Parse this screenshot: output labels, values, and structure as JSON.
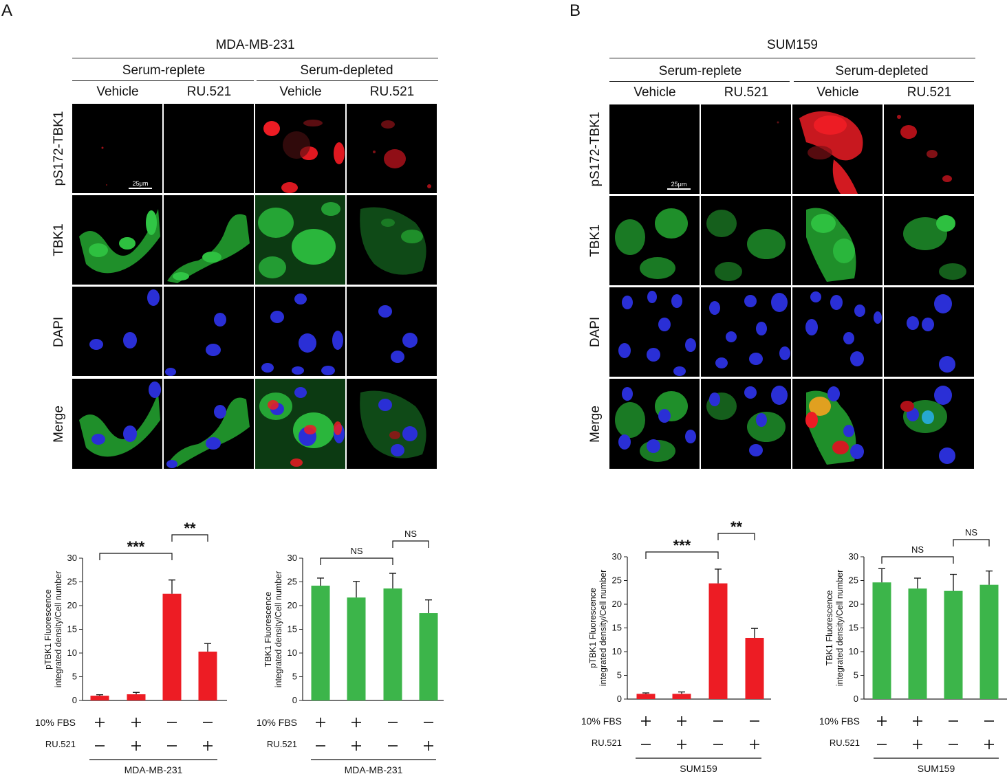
{
  "panels": [
    {
      "letter": "A",
      "cell_line": "MDA-MB-231",
      "conditions": [
        "Serum-replete",
        "Serum-depleted"
      ],
      "treatments": [
        "Vehicle",
        "RU.521",
        "Vehicle",
        "RU.521"
      ],
      "rows": [
        "pS172-TBK1",
        "TBK1",
        "DAPI",
        "Merge"
      ],
      "scale_bar": "25μm"
    },
    {
      "letter": "B",
      "cell_line": "SUM159",
      "conditions": [
        "Serum-replete",
        "Serum-depleted"
      ],
      "treatments": [
        "Vehicle",
        "RU.521",
        "Vehicle",
        "RU.521"
      ],
      "rows": [
        "pS172-TBK1",
        "TBK1",
        "DAPI",
        "Merge"
      ],
      "scale_bar": "25μm"
    }
  ],
  "colors": {
    "red": "#ed1c24",
    "green": "#3cb54a",
    "dapi": "#2a2fd6",
    "axis": "#222222"
  },
  "chart_data": [
    {
      "type": "bar",
      "color": "red",
      "ylabel": "pTBK1 Fluorescence integrated density/Cell number",
      "ylim": [
        0,
        30
      ],
      "yticks": [
        0,
        5,
        10,
        15,
        20,
        25,
        30
      ],
      "values": [
        1.0,
        1.3,
        22.5,
        10.3
      ],
      "errors": [
        0.2,
        0.4,
        2.9,
        1.7
      ],
      "row_labels": [
        "10% FBS",
        "RU.521"
      ],
      "fbs": [
        "+",
        "+",
        "—",
        "—"
      ],
      "ru": [
        "—",
        "+",
        "—",
        "+"
      ],
      "group_label": "MDA-MB-231",
      "comparisons": [
        {
          "from": 0,
          "to": 2,
          "label": "***"
        },
        {
          "from": 2,
          "to": 3,
          "label": "**"
        }
      ]
    },
    {
      "type": "bar",
      "color": "green",
      "ylabel": "TBK1 Fluorescence integrated density/Cell number",
      "ylim": [
        0,
        30
      ],
      "yticks": [
        0,
        5,
        10,
        15,
        20,
        25,
        30
      ],
      "values": [
        24.2,
        21.7,
        23.6,
        18.4
      ],
      "errors": [
        1.6,
        3.4,
        3.2,
        2.8
      ],
      "row_labels": [
        "10% FBS",
        "RU.521"
      ],
      "fbs": [
        "+",
        "+",
        "—",
        "—"
      ],
      "ru": [
        "—",
        "+",
        "—",
        "+"
      ],
      "group_label": "MDA-MB-231",
      "comparisons": [
        {
          "from": 0,
          "to": 2,
          "label": "NS"
        },
        {
          "from": 2,
          "to": 3,
          "label": "NS"
        }
      ]
    },
    {
      "type": "bar",
      "color": "red",
      "ylabel": "pTBK1 Fluorescence integrated density/Cell number",
      "ylim": [
        0,
        30
      ],
      "yticks": [
        0,
        5,
        10,
        15,
        20,
        25,
        30
      ],
      "values": [
        1.1,
        1.1,
        24.4,
        12.9
      ],
      "errors": [
        0.2,
        0.4,
        3.0,
        2.0
      ],
      "row_labels": [
        "10% FBS",
        "RU.521"
      ],
      "fbs": [
        "+",
        "+",
        "—",
        "—"
      ],
      "ru": [
        "—",
        "+",
        "—",
        "+"
      ],
      "group_label": "SUM159",
      "comparisons": [
        {
          "from": 0,
          "to": 2,
          "label": "***"
        },
        {
          "from": 2,
          "to": 3,
          "label": "**"
        }
      ]
    },
    {
      "type": "bar",
      "color": "green",
      "ylabel": "TBK1 Fluorescence integrated density/Cell number",
      "ylim": [
        0,
        30
      ],
      "yticks": [
        0,
        5,
        10,
        15,
        20,
        25,
        30
      ],
      "values": [
        24.6,
        23.3,
        22.8,
        24.1
      ],
      "errors": [
        2.9,
        2.2,
        3.5,
        2.9
      ],
      "row_labels": [
        "10% FBS",
        "RU.521"
      ],
      "fbs": [
        "+",
        "+",
        "—",
        "—"
      ],
      "ru": [
        "—",
        "+",
        "—",
        "+"
      ],
      "group_label": "SUM159",
      "comparisons": [
        {
          "from": 0,
          "to": 2,
          "label": "NS"
        },
        {
          "from": 2,
          "to": 3,
          "label": "NS"
        }
      ]
    }
  ]
}
